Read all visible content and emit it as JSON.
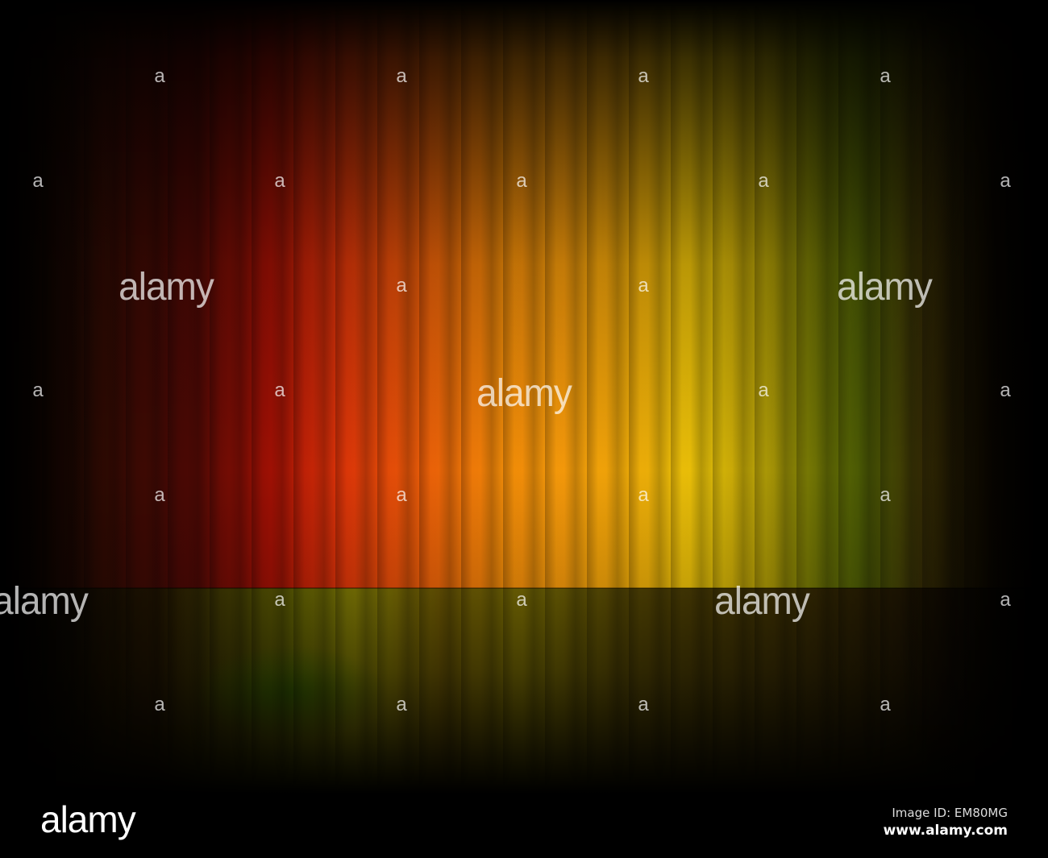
{
  "watermark": {
    "small": "a",
    "large": "alamy"
  },
  "footer": {
    "logo": "alamy",
    "image_id": "Image ID: EM80MG",
    "url": "www.alamy.com"
  },
  "colors": {
    "red": "#d83008",
    "orange": "#f08a08",
    "yellow": "#e8c008",
    "green": "#4a5a04",
    "background": "#000000"
  }
}
